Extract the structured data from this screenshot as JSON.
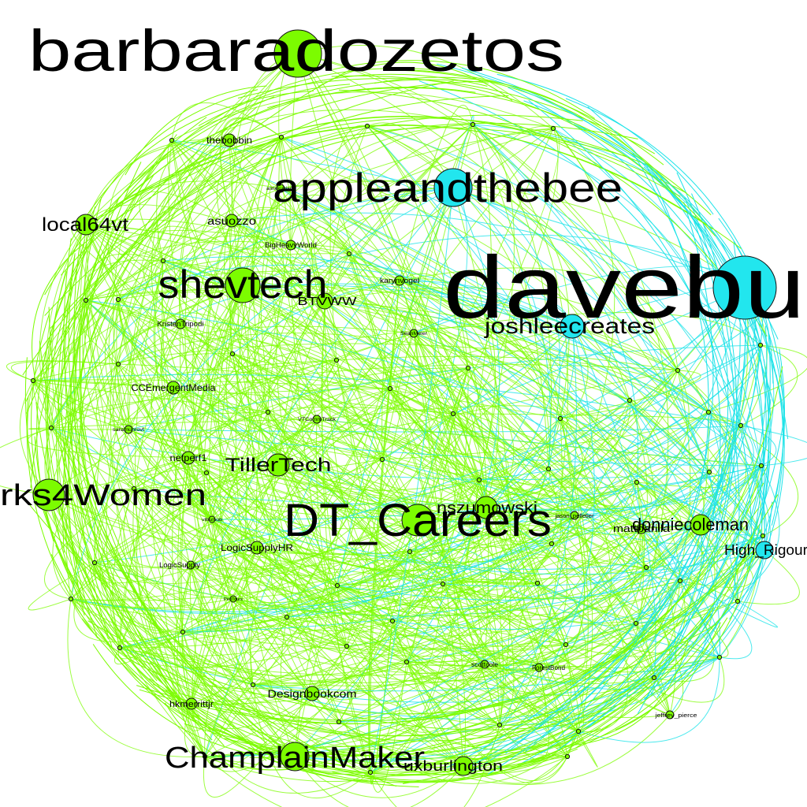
{
  "colors": {
    "background": "#ffffff",
    "edge_green": "#7cfc00",
    "edge_cyan": "#1ee3e8",
    "node_green": "#7cfc00",
    "node_cyan": "#22e6ee",
    "node_stroke": "#111111",
    "label": "#000000"
  },
  "nodes": [
    {
      "id": "barbaradozetos",
      "label": "barbaradozetos",
      "group": "green",
      "weight": 5
    },
    {
      "id": "appleandthebee",
      "label": "appleandthebee",
      "group": "cyan",
      "weight": 4
    },
    {
      "id": "davebu",
      "label": "davebu",
      "group": "cyan",
      "weight": 6
    },
    {
      "id": "shevtech",
      "label": "shevtech",
      "group": "green",
      "weight": 4
    },
    {
      "id": "DT_Careers",
      "label": "DT_Careers",
      "group": "green",
      "weight": 5
    },
    {
      "id": "rks4Women",
      "label": "rks4Women",
      "group": "green",
      "weight": 4
    },
    {
      "id": "ChamplainMaker",
      "label": "ChamplainMaker",
      "group": "green",
      "weight": 4
    },
    {
      "id": "joshleecreates",
      "label": "joshleecreates",
      "group": "cyan",
      "weight": 3
    },
    {
      "id": "local64vt",
      "label": "local64vt",
      "group": "green",
      "weight": 3
    },
    {
      "id": "TillerTech",
      "label": "TillerTech",
      "group": "green",
      "weight": 3
    },
    {
      "id": "nszumowski",
      "label": "nszumowski",
      "group": "green",
      "weight": 3
    },
    {
      "id": "donniecoleman",
      "label": "donniecoleman",
      "group": "green",
      "weight": 3
    },
    {
      "id": "High_Rigour",
      "label": "High_Rigour",
      "group": "cyan",
      "weight": 2
    },
    {
      "id": "uxburlington",
      "label": "uxburlington",
      "group": "green",
      "weight": 3
    },
    {
      "id": "thebobbin",
      "label": "thebobbin",
      "group": "green",
      "weight": 2
    },
    {
      "id": "asuozzo",
      "label": "asuozzo",
      "group": "green",
      "weight": 2
    },
    {
      "id": "BTVWW",
      "label": "BTVWW",
      "group": "green",
      "weight": 2
    },
    {
      "id": "CCEmergentMedia",
      "label": "CCEmergentMedia",
      "group": "green",
      "weight": 2
    },
    {
      "id": "netperf1",
      "label": "netperf1",
      "group": "green",
      "weight": 2
    },
    {
      "id": "LogicSupplyHR",
      "label": "LogicSupplyHR",
      "group": "green",
      "weight": 2
    },
    {
      "id": "Designbookcom",
      "label": "Designbookcom",
      "group": "green",
      "weight": 2
    },
    {
      "id": "hkmerrittjr",
      "label": "hkmerrittjr",
      "group": "green",
      "weight": 2
    },
    {
      "id": "mattparilla",
      "label": "mattparilla",
      "group": "green",
      "weight": 2
    },
    {
      "id": "BigHeavyWorld",
      "label": "BigHeavyWorld",
      "group": "green",
      "weight": 1
    },
    {
      "id": "karynvogel",
      "label": "karynvogel",
      "group": "green",
      "weight": 1
    },
    {
      "id": "KristenTripodi",
      "label": "KristenTripodi",
      "group": "green",
      "weight": 1
    },
    {
      "id": "LogicSupply",
      "label": "LogicSupply",
      "group": "green",
      "weight": 1
    },
    {
      "id": "jason_pelletier",
      "label": "jason_pelletier",
      "group": "green",
      "weight": 1
    },
    {
      "id": "scottcole",
      "label": "scottcole",
      "group": "green",
      "weight": 1
    },
    {
      "id": "ForestBond",
      "label": "ForestBond",
      "group": "green",
      "weight": 1
    },
    {
      "id": "jeffrey_pierce",
      "label": "jeffrey_pierce",
      "group": "green",
      "weight": 1
    },
    {
      "id": "SeanMeier",
      "label": "SeanMeier",
      "group": "green",
      "weight": 1
    },
    {
      "id": "VTCommTrack",
      "label": "VTCommTrack",
      "group": "green",
      "weight": 1
    },
    {
      "id": "saramunrovt",
      "label": "saramunrovt",
      "group": "green",
      "weight": 1
    },
    {
      "id": "annekubiack",
      "label": "annekubiack",
      "group": "green",
      "weight": 1
    },
    {
      "id": "vtbizhub",
      "label": "vtbizhub",
      "group": "green",
      "weight": 1
    },
    {
      "id": "PeriTours",
      "label": "PeriTours",
      "group": "green",
      "weight": 1
    }
  ]
}
